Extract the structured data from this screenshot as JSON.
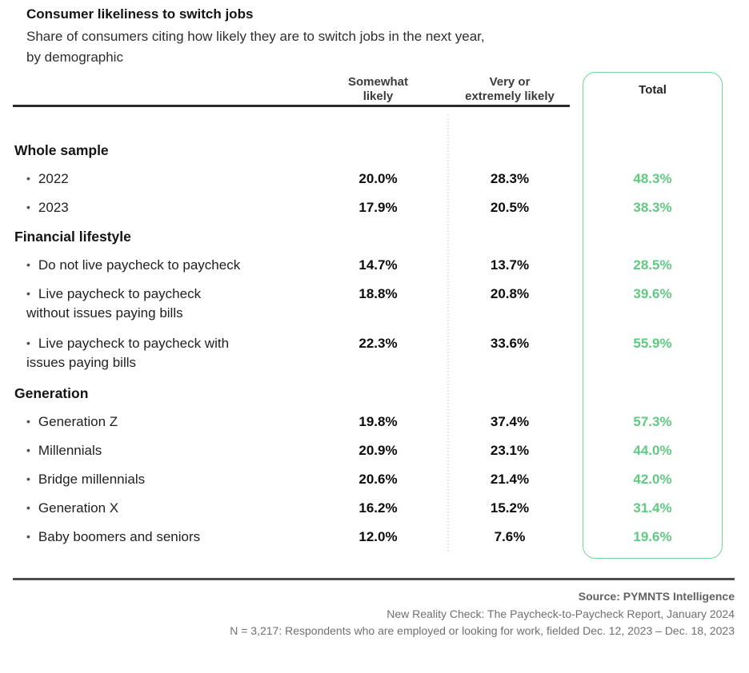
{
  "header": {
    "title": "Consumer likeliness to switch jobs",
    "subtitle": "Share of consumers citing how likely they are to switch jobs in the next year,\nby demographic"
  },
  "chart_data": {
    "type": "table",
    "title": "Consumer likeliness to switch jobs",
    "subtitle": "Share of consumers citing how likely they are to switch jobs in the next year, by demographic",
    "bullet": "•",
    "columns": {
      "somewhat": "Somewhat\nlikely",
      "very": "Very or\nextremely likely",
      "total": "Total"
    },
    "sections": [
      {
        "heading": "Whole sample",
        "rows": [
          {
            "label": "2022",
            "somewhat": "20.0%",
            "very": "28.3%",
            "total": "48.3%"
          },
          {
            "label": "2023",
            "somewhat": "17.9%",
            "very": "20.5%",
            "total": "38.3%"
          }
        ]
      },
      {
        "heading": "Financial lifestyle",
        "rows": [
          {
            "label": "Do not live paycheck to paycheck",
            "somewhat": "14.7%",
            "very": "13.7%",
            "total": "28.5%"
          },
          {
            "label": "Live paycheck to paycheck\nwithout issues paying bills",
            "somewhat": "18.8%",
            "very": "20.8%",
            "total": "39.6%"
          },
          {
            "label": "Live paycheck to paycheck with\nissues paying bills",
            "somewhat": "22.3%",
            "very": "33.6%",
            "total": "55.9%"
          }
        ]
      },
      {
        "heading": "Generation",
        "rows": [
          {
            "label": "Generation Z",
            "somewhat": "19.8%",
            "very": "37.4%",
            "total": "57.3%"
          },
          {
            "label": "Millennials",
            "somewhat": "20.9%",
            "very": "23.1%",
            "total": "44.0%"
          },
          {
            "label": "Bridge millennials",
            "somewhat": "20.6%",
            "very": "21.4%",
            "total": "42.0%"
          },
          {
            "label": "Generation X",
            "somewhat": "16.2%",
            "very": "15.2%",
            "total": "31.4%"
          },
          {
            "label": "Baby boomers and seniors",
            "somewhat": "12.0%",
            "very": "7.6%",
            "total": "19.6%"
          }
        ]
      }
    ],
    "layout": {
      "total_column_highlighted": true,
      "column_divider": "dotted"
    }
  },
  "footer": {
    "source": "Source: PYMNTS Intelligence",
    "report": "New Reality Check: The Paycheck-to-Paycheck Report, January 2024",
    "note": "N = 3,217: Respondents who are employed or looking for work, fielded Dec. 12, 2023 – Dec. 18, 2023"
  },
  "colors": {
    "accent_green": "#5ecb81",
    "box_border_green": "#79d396",
    "dotted_divider": "#d9efe0",
    "header_rule": "#2b2b2b",
    "footer_rule": "#4d4d4d",
    "footer_gray": "#6f6f6f"
  }
}
